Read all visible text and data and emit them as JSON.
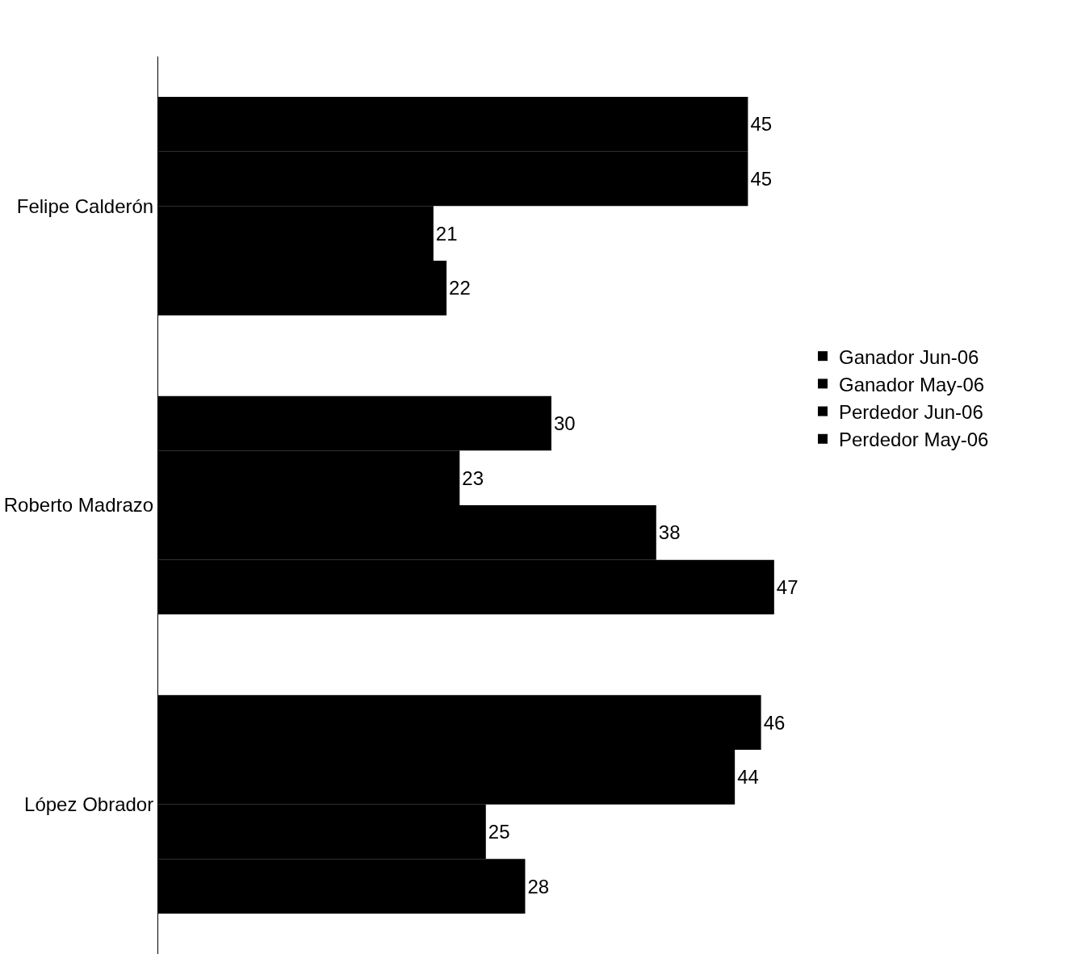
{
  "chart_data": {
    "type": "bar",
    "orientation": "horizontal",
    "categories": [
      "Felipe Calderón",
      "Roberto Madrazo",
      "López Obrador"
    ],
    "series": [
      {
        "name": "Ganador Jun-06",
        "color": "#000000",
        "values": [
          45,
          30,
          46
        ]
      },
      {
        "name": "Ganador May-06",
        "color": "#000000",
        "values": [
          45,
          23,
          44
        ]
      },
      {
        "name": "Perdedor Jun-06",
        "color": "#000000",
        "values": [
          21,
          38,
          25
        ]
      },
      {
        "name": "Perdedor May-06",
        "color": "#000000",
        "values": [
          22,
          47,
          28
        ]
      }
    ],
    "data_labels": true,
    "legend": "right"
  }
}
